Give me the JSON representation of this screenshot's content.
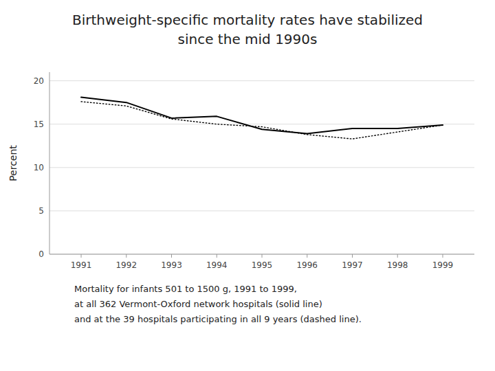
{
  "chart_data": {
    "type": "line",
    "title": [
      "Birthweight-specific mortality rates have stabilized",
      "since the mid 1990s"
    ],
    "y_label": "Percent",
    "x": [
      1991,
      1992,
      1993,
      1994,
      1995,
      1996,
      1997,
      1998,
      1999
    ],
    "series": [
      {
        "color": "#000000",
        "line_style": "solid",
        "values": [
          18.1,
          17.5,
          15.7,
          15.9,
          14.4,
          13.9,
          14.5,
          14.5,
          14.9
        ]
      },
      {
        "color": "#000000",
        "line_style": "dotted",
        "values": [
          17.6,
          17.1,
          15.6,
          15.0,
          14.7,
          13.8,
          13.3,
          14.1,
          14.9
        ]
      }
    ],
    "xlim": [
      1990.3,
      1999.7
    ],
    "xticks": [
      1991,
      1992,
      1993,
      1994,
      1995,
      1996,
      1997,
      1998,
      1999
    ],
    "ylim": [
      0,
      21
    ],
    "yticks": [
      0,
      5,
      10,
      15,
      20
    ],
    "grid": true,
    "annotations": [
      "Mortality for infants 501 to 1500 g, 1991 to 1999,",
      "at all 362 Vermont-Oxford network hospitals (solid line)",
      "and at the 39 hospitals participating in all 9 years (dashed line)."
    ]
  }
}
